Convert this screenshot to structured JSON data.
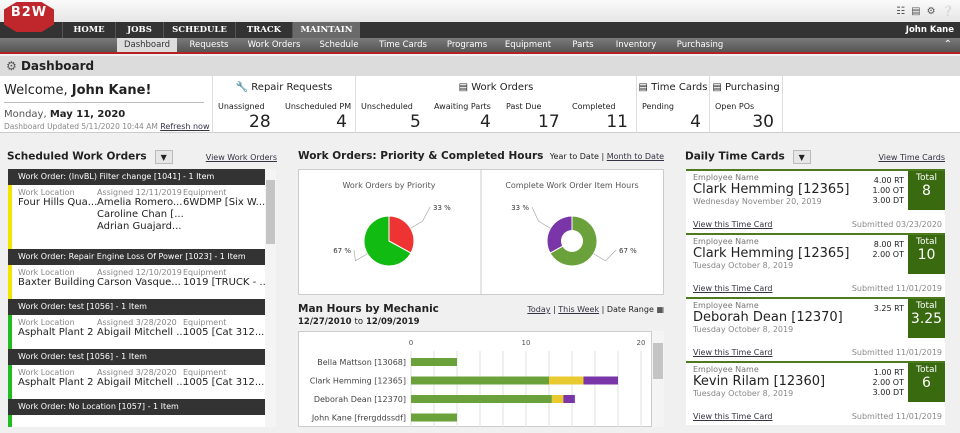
{
  "app": {
    "logo": "B2W",
    "user": "John Kane"
  },
  "header_icons": [
    "library-icon",
    "report-icon",
    "gear-icon",
    "help-icon"
  ],
  "nav": {
    "tabs": [
      "HOME",
      "JOBS",
      "SCHEDULE",
      "TRACK",
      "MAINTAIN"
    ],
    "active": "MAINTAIN"
  },
  "subnav": {
    "items": [
      "Dashboard",
      "Requests",
      "Work Orders",
      "Schedule",
      "Time Cards",
      "Programs",
      "Equipment",
      "Parts",
      "Inventory",
      "Purchasing"
    ],
    "active": "Dashboard"
  },
  "page_title": "Dashboard",
  "welcome": {
    "greeting": "Welcome,",
    "name": "John Kane!",
    "weekday": "Monday,",
    "date": "May 11, 2020",
    "updated": "Dashboard Updated 5/11/2020 10:44 AM",
    "refresh": "Refresh now"
  },
  "stats": {
    "repair": {
      "title": "Repair Requests",
      "items": [
        {
          "label": "Unassigned",
          "value": "28"
        },
        {
          "label": "Unscheduled PM",
          "value": "4"
        }
      ]
    },
    "work_orders": {
      "title": "Work Orders",
      "items": [
        {
          "label": "Unscheduled",
          "value": "5"
        },
        {
          "label": "Awaiting Parts",
          "value": "4"
        },
        {
          "label": "Past Due",
          "value": "17"
        },
        {
          "label": "Completed",
          "value": "11"
        }
      ]
    },
    "time_cards": {
      "title": "Time Cards",
      "items": [
        {
          "label": "Pending",
          "value": "4"
        }
      ]
    },
    "purchasing": {
      "title": "Purchasing",
      "items": [
        {
          "label": "Open POs",
          "value": "30"
        }
      ]
    }
  },
  "scheduled": {
    "title": "Scheduled Work Orders",
    "link": "View Work Orders",
    "k_loc": "Work Location",
    "k_eq": "Equipment",
    "orders": [
      {
        "header": "Work Order: (InvBL) Filter change [1041] - 1 Item",
        "color": "#f2e600",
        "location": "Four Hills Qua...",
        "assigned": "Assigned 12/11/2019",
        "people": [
          "Amelia Romero...",
          "Caroline Chan [...",
          "Adrian Guajard..."
        ],
        "equipment": "6WDMP [Six W..."
      },
      {
        "header": "Work Order: Repair Engine Loss Of Power [1023] - 1 Item",
        "color": "#f2e600",
        "location": "Baxter Building",
        "assigned": "Assigned 12/10/2019",
        "people": [
          "Carson Vasque..."
        ],
        "equipment": "1019 [TRUCK - ..."
      },
      {
        "header": "Work Order: test [1056] - 1 Item",
        "color": "#22bb22",
        "location": "Asphalt Plant 2",
        "assigned": "Assigned 3/28/2020",
        "people": [
          "Abigail Mitchell ..."
        ],
        "equipment": "1005 [Cat 312..."
      },
      {
        "header": "Work Order: test [1056] - 1 Item",
        "color": "#22bb22",
        "location": "Asphalt Plant 2",
        "assigned": "Assigned 3/28/2020",
        "people": [
          "Abigail Mitchell ..."
        ],
        "equipment": "1005 [Cat 312..."
      },
      {
        "header": "Work Order: No Location [1057] - 1 Item",
        "color": "#22bb22"
      }
    ]
  },
  "priority": {
    "title": "Work Orders: Priority & Completed Hours",
    "ytd": "Year to Date",
    "mtd": "Month to Date"
  },
  "chart_data": [
    {
      "type": "pie",
      "title": "Work Orders by Priority",
      "slices": [
        {
          "label": "33 %",
          "value": 33,
          "color": "#ee3333"
        },
        {
          "label": "67 %",
          "value": 67,
          "color": "#11bb11"
        }
      ]
    },
    {
      "type": "pie",
      "title": "Complete Work Order Item Hours",
      "donut": true,
      "slices": [
        {
          "label": "67 %",
          "value": 67,
          "color": "#6aa13a"
        },
        {
          "label": "33 %",
          "value": 33,
          "color": "#7a35a8"
        }
      ]
    },
    {
      "type": "bar",
      "orientation": "horizontal",
      "stacked": true,
      "title": "Man Hours by Mechanic",
      "xlim": [
        0,
        20
      ],
      "xticks": [
        "0",
        "10",
        "20"
      ],
      "categories": [
        "Bella Mattson [13068]",
        "Clark Hemming [12365]",
        "Deborah Dean [12370]",
        "John Kane [frergddssdf]"
      ],
      "series": [
        {
          "name": "RT",
          "color": "#6aa13a",
          "values": [
            4,
            12,
            12.25,
            4
          ]
        },
        {
          "name": "OT",
          "color": "#e8c930",
          "values": [
            0,
            3,
            1,
            0
          ]
        },
        {
          "name": "DT",
          "color": "#7a35a8",
          "values": [
            0,
            3,
            1,
            0
          ]
        }
      ]
    }
  ],
  "man_hours": {
    "title": "Man Hours by Mechanic",
    "from": "12/27/2010",
    "to_word": "to",
    "to": "12/09/2019",
    "today": "Today",
    "week": "This Week",
    "range": "Date Range"
  },
  "timecards": {
    "title": "Daily Time Cards",
    "link": "View Time Cards",
    "emp_label": "Employee Name",
    "total_label": "Total",
    "view": "View this Time Card",
    "cards": [
      {
        "name": "Clark Hemming [12365]",
        "date": "Wednesday November 20, 2019",
        "hours": [
          "4.00 RT",
          "1.00 OT",
          "3.00 DT"
        ],
        "total": "8",
        "submitted": "Submitted 03/23/2020"
      },
      {
        "name": "Clark Hemming [12365]",
        "date": "Tuesday October 8, 2019",
        "hours": [
          "8.00 RT",
          "2.00 OT"
        ],
        "total": "10",
        "submitted": "Submitted 11/01/2019"
      },
      {
        "name": "Deborah Dean [12370]",
        "date": "Tuesday October 8, 2019",
        "hours": [
          "3.25 RT"
        ],
        "total": "3.25",
        "submitted": "Submitted 11/01/2019"
      },
      {
        "name": "Kevin Rilam [12360]",
        "date": "Tuesday October 8, 2019",
        "hours": [
          "1.00 RT",
          "2.00 OT",
          "3.00 DT"
        ],
        "total": "6",
        "submitted": "Submitted 11/01/2019"
      }
    ]
  }
}
